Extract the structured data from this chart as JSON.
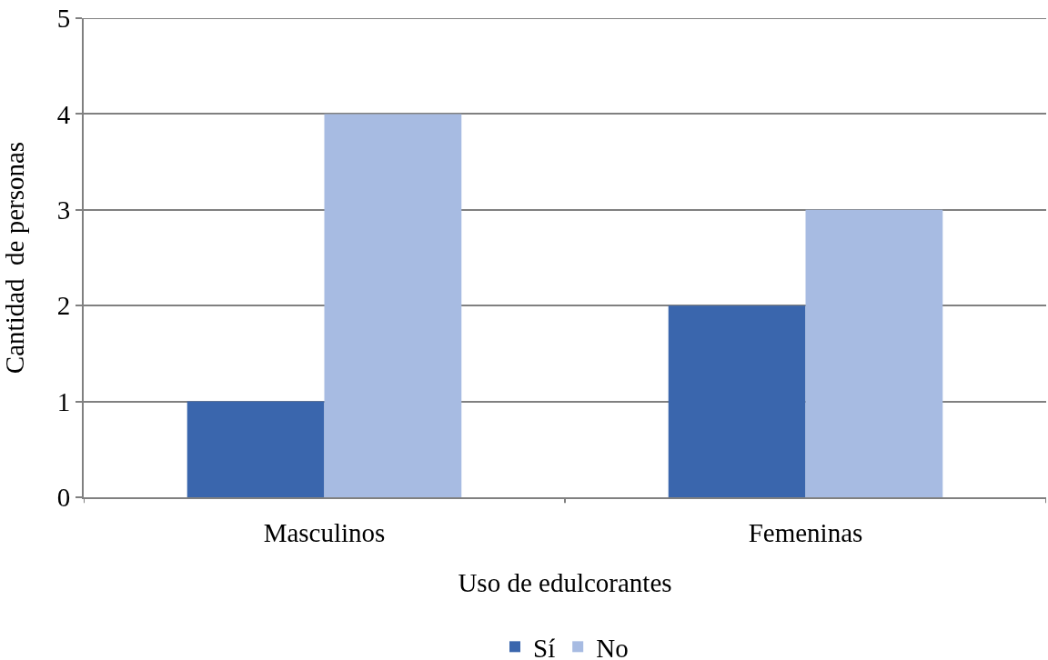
{
  "chart_data": {
    "type": "bar",
    "xlabel": "Uso de edulcorantes",
    "ylabel": "Cantidad  de personas",
    "categories": [
      "Masculinos",
      "Femeninas"
    ],
    "series": [
      {
        "name": "Sí",
        "color": "#3a66ad",
        "values": [
          1,
          2
        ]
      },
      {
        "name": "No",
        "color": "#a7bbe2",
        "values": [
          4,
          3
        ]
      }
    ],
    "ylim": [
      0,
      5
    ],
    "yticks": [
      0,
      1,
      2,
      3,
      4,
      5
    ],
    "grid": "y",
    "legend": "bottom"
  }
}
